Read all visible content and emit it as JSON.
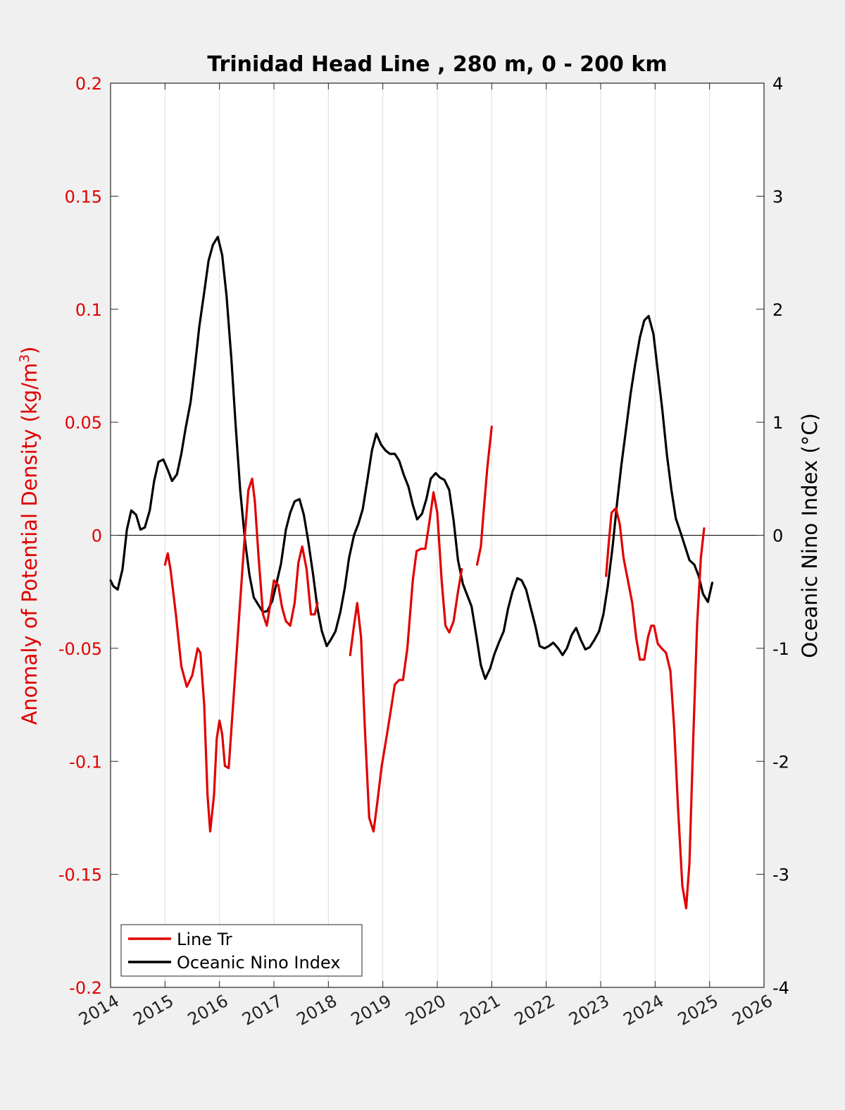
{
  "chart_data": {
    "type": "line",
    "title": "Trinidad Head Line , 280 m, 0 - 200 km",
    "ylabel_left": "Anomaly of Potential Density (kg/m",
    "ylabel_left_sup": "3",
    "ylabel_left_close": ")",
    "ylabel_right": "Oceanic Nino Index (°C)",
    "xlim": [
      2014,
      2026
    ],
    "ylim_left": [
      -0.2,
      0.2
    ],
    "ylim_right": [
      -4,
      4
    ],
    "x_ticks": [
      "2014",
      "2015",
      "2016",
      "2017",
      "2018",
      "2019",
      "2020",
      "2021",
      "2022",
      "2023",
      "2024",
      "2025",
      "2026"
    ],
    "y_ticks_left": [
      "-0.2",
      "-0.15",
      "-0.1",
      "-0.05",
      "0",
      "0.05",
      "0.1",
      "0.15",
      "0.2"
    ],
    "y_ticks_right": [
      "-4",
      "-3",
      "-2",
      "-1",
      "0",
      "1",
      "2",
      "3",
      "4"
    ],
    "grid": "vertical",
    "legend_position": "bottom-left",
    "colors": {
      "line_tr": "#e00000",
      "oni": "#000000",
      "left_axis": "#e00000",
      "plot_bg": "#ffffff",
      "figure_bg": "#f0f0f0"
    },
    "series": [
      {
        "name": "Line Tr",
        "axis": "left",
        "color": "#e00000",
        "segments": [
          [
            [
              2015.0,
              -0.013
            ],
            [
              2015.05,
              -0.008
            ],
            [
              2015.1,
              -0.015
            ],
            [
              2015.2,
              -0.035
            ],
            [
              2015.3,
              -0.058
            ],
            [
              2015.4,
              -0.067
            ],
            [
              2015.5,
              -0.062
            ],
            [
              2015.6,
              -0.05
            ],
            [
              2015.65,
              -0.052
            ],
            [
              2015.72,
              -0.075
            ],
            [
              2015.78,
              -0.115
            ],
            [
              2015.83,
              -0.131
            ],
            [
              2015.9,
              -0.115
            ],
            [
              2015.95,
              -0.09
            ],
            [
              2016.0,
              -0.082
            ],
            [
              2016.05,
              -0.088
            ],
            [
              2016.1,
              -0.102
            ],
            [
              2016.17,
              -0.103
            ],
            [
              2016.25,
              -0.075
            ],
            [
              2016.35,
              -0.04
            ],
            [
              2016.45,
              -0.005
            ],
            [
              2016.53,
              0.02
            ],
            [
              2016.6,
              0.025
            ],
            [
              2016.65,
              0.015
            ],
            [
              2016.72,
              -0.01
            ],
            [
              2016.8,
              -0.035
            ],
            [
              2016.87,
              -0.04
            ],
            [
              2016.95,
              -0.028
            ],
            [
              2017.0,
              -0.02
            ],
            [
              2017.08,
              -0.022
            ],
            [
              2017.15,
              -0.032
            ],
            [
              2017.22,
              -0.038
            ],
            [
              2017.3,
              -0.04
            ],
            [
              2017.38,
              -0.03
            ],
            [
              2017.45,
              -0.012
            ],
            [
              2017.52,
              -0.005
            ],
            [
              2017.6,
              -0.015
            ],
            [
              2017.68,
              -0.035
            ],
            [
              2017.75,
              -0.035
            ],
            [
              2017.8,
              -0.03
            ]
          ],
          [
            [
              2018.4,
              -0.053
            ],
            [
              2018.47,
              -0.04
            ],
            [
              2018.53,
              -0.03
            ],
            [
              2018.6,
              -0.045
            ],
            [
              2018.67,
              -0.085
            ],
            [
              2018.75,
              -0.125
            ],
            [
              2018.83,
              -0.131
            ],
            [
              2018.9,
              -0.118
            ],
            [
              2018.98,
              -0.102
            ],
            [
              2019.05,
              -0.092
            ],
            [
              2019.13,
              -0.08
            ],
            [
              2019.22,
              -0.066
            ],
            [
              2019.3,
              -0.064
            ],
            [
              2019.37,
              -0.064
            ],
            [
              2019.45,
              -0.05
            ],
            [
              2019.55,
              -0.02
            ],
            [
              2019.62,
              -0.007
            ],
            [
              2019.7,
              -0.006
            ],
            [
              2019.78,
              -0.006
            ],
            [
              2019.85,
              0.005
            ],
            [
              2019.93,
              0.019
            ],
            [
              2020.0,
              0.01
            ],
            [
              2020.08,
              -0.02
            ],
            [
              2020.15,
              -0.04
            ],
            [
              2020.22,
              -0.043
            ],
            [
              2020.3,
              -0.038
            ],
            [
              2020.38,
              -0.025
            ],
            [
              2020.45,
              -0.015
            ]
          ],
          [
            [
              2020.73,
              -0.013
            ],
            [
              2020.8,
              -0.005
            ],
            [
              2020.85,
              0.01
            ],
            [
              2020.92,
              0.03
            ],
            [
              2021.0,
              0.048
            ]
          ],
          [
            [
              2023.1,
              -0.018
            ],
            [
              2023.15,
              -0.003
            ],
            [
              2023.2,
              0.01
            ],
            [
              2023.28,
              0.012
            ],
            [
              2023.35,
              0.005
            ],
            [
              2023.42,
              -0.01
            ],
            [
              2023.5,
              -0.02
            ],
            [
              2023.58,
              -0.03
            ],
            [
              2023.65,
              -0.045
            ],
            [
              2023.72,
              -0.055
            ],
            [
              2023.8,
              -0.055
            ],
            [
              2023.87,
              -0.045
            ],
            [
              2023.93,
              -0.04
            ],
            [
              2023.98,
              -0.04
            ],
            [
              2024.05,
              -0.048
            ],
            [
              2024.12,
              -0.05
            ],
            [
              2024.2,
              -0.052
            ],
            [
              2024.28,
              -0.06
            ],
            [
              2024.35,
              -0.085
            ],
            [
              2024.42,
              -0.12
            ],
            [
              2024.5,
              -0.155
            ],
            [
              2024.57,
              -0.165
            ],
            [
              2024.63,
              -0.145
            ],
            [
              2024.7,
              -0.09
            ],
            [
              2024.77,
              -0.04
            ],
            [
              2024.84,
              -0.01
            ],
            [
              2024.9,
              0.003
            ]
          ]
        ]
      },
      {
        "name": "Oceanic Nino Index",
        "axis": "right",
        "color": "#000000",
        "points": [
          [
            2014.0,
            -0.4
          ],
          [
            2014.05,
            -0.45
          ],
          [
            2014.13,
            -0.48
          ],
          [
            2014.22,
            -0.3
          ],
          [
            2014.3,
            0.05
          ],
          [
            2014.38,
            0.22
          ],
          [
            2014.47,
            0.18
          ],
          [
            2014.55,
            0.05
          ],
          [
            2014.63,
            0.07
          ],
          [
            2014.72,
            0.22
          ],
          [
            2014.8,
            0.48
          ],
          [
            2014.88,
            0.65
          ],
          [
            2014.97,
            0.67
          ],
          [
            2015.05,
            0.58
          ],
          [
            2015.13,
            0.48
          ],
          [
            2015.22,
            0.54
          ],
          [
            2015.3,
            0.72
          ],
          [
            2015.38,
            0.95
          ],
          [
            2015.47,
            1.18
          ],
          [
            2015.55,
            1.5
          ],
          [
            2015.63,
            1.85
          ],
          [
            2015.72,
            2.15
          ],
          [
            2015.8,
            2.43
          ],
          [
            2015.88,
            2.57
          ],
          [
            2015.97,
            2.64
          ],
          [
            2016.05,
            2.48
          ],
          [
            2016.13,
            2.12
          ],
          [
            2016.22,
            1.55
          ],
          [
            2016.3,
            0.95
          ],
          [
            2016.38,
            0.4
          ],
          [
            2016.47,
            -0.05
          ],
          [
            2016.55,
            -0.35
          ],
          [
            2016.63,
            -0.55
          ],
          [
            2016.72,
            -0.62
          ],
          [
            2016.8,
            -0.68
          ],
          [
            2016.88,
            -0.67
          ],
          [
            2016.97,
            -0.58
          ],
          [
            2017.05,
            -0.42
          ],
          [
            2017.13,
            -0.25
          ],
          [
            2017.22,
            0.05
          ],
          [
            2017.3,
            0.2
          ],
          [
            2017.38,
            0.3
          ],
          [
            2017.47,
            0.32
          ],
          [
            2017.55,
            0.18
          ],
          [
            2017.63,
            -0.05
          ],
          [
            2017.72,
            -0.35
          ],
          [
            2017.8,
            -0.65
          ],
          [
            2017.88,
            -0.85
          ],
          [
            2017.97,
            -0.98
          ],
          [
            2018.05,
            -0.92
          ],
          [
            2018.13,
            -0.85
          ],
          [
            2018.22,
            -0.68
          ],
          [
            2018.3,
            -0.47
          ],
          [
            2018.38,
            -0.2
          ],
          [
            2018.47,
            0.0
          ],
          [
            2018.55,
            0.1
          ],
          [
            2018.63,
            0.23
          ],
          [
            2018.72,
            0.5
          ],
          [
            2018.8,
            0.75
          ],
          [
            2018.88,
            0.9
          ],
          [
            2018.97,
            0.8
          ],
          [
            2019.05,
            0.75
          ],
          [
            2019.13,
            0.72
          ],
          [
            2019.22,
            0.72
          ],
          [
            2019.3,
            0.66
          ],
          [
            2019.38,
            0.54
          ],
          [
            2019.47,
            0.43
          ],
          [
            2019.55,
            0.27
          ],
          [
            2019.63,
            0.14
          ],
          [
            2019.72,
            0.19
          ],
          [
            2019.8,
            0.32
          ],
          [
            2019.88,
            0.5
          ],
          [
            2019.97,
            0.55
          ],
          [
            2020.05,
            0.51
          ],
          [
            2020.13,
            0.49
          ],
          [
            2020.22,
            0.4
          ],
          [
            2020.3,
            0.13
          ],
          [
            2020.38,
            -0.22
          ],
          [
            2020.47,
            -0.43
          ],
          [
            2020.55,
            -0.53
          ],
          [
            2020.63,
            -0.63
          ],
          [
            2020.72,
            -0.9
          ],
          [
            2020.8,
            -1.15
          ],
          [
            2020.88,
            -1.27
          ],
          [
            2020.97,
            -1.18
          ],
          [
            2021.05,
            -1.05
          ],
          [
            2021.13,
            -0.95
          ],
          [
            2021.22,
            -0.85
          ],
          [
            2021.3,
            -0.65
          ],
          [
            2021.38,
            -0.5
          ],
          [
            2021.47,
            -0.38
          ],
          [
            2021.55,
            -0.4
          ],
          [
            2021.63,
            -0.48
          ],
          [
            2021.72,
            -0.65
          ],
          [
            2021.8,
            -0.8
          ],
          [
            2021.88,
            -0.98
          ],
          [
            2021.97,
            -1.0
          ],
          [
            2022.05,
            -0.98
          ],
          [
            2022.13,
            -0.95
          ],
          [
            2022.22,
            -1.0
          ],
          [
            2022.3,
            -1.06
          ],
          [
            2022.38,
            -1.0
          ],
          [
            2022.47,
            -0.88
          ],
          [
            2022.55,
            -0.82
          ],
          [
            2022.63,
            -0.92
          ],
          [
            2022.72,
            -1.01
          ],
          [
            2022.8,
            -0.99
          ],
          [
            2022.88,
            -0.93
          ],
          [
            2022.97,
            -0.85
          ],
          [
            2023.05,
            -0.7
          ],
          [
            2023.13,
            -0.45
          ],
          [
            2023.22,
            -0.1
          ],
          [
            2023.3,
            0.28
          ],
          [
            2023.38,
            0.62
          ],
          [
            2023.47,
            0.95
          ],
          [
            2023.55,
            1.25
          ],
          [
            2023.63,
            1.5
          ],
          [
            2023.72,
            1.75
          ],
          [
            2023.8,
            1.9
          ],
          [
            2023.88,
            1.94
          ],
          [
            2023.97,
            1.78
          ],
          [
            2024.05,
            1.45
          ],
          [
            2024.13,
            1.12
          ],
          [
            2024.22,
            0.7
          ],
          [
            2024.3,
            0.4
          ],
          [
            2024.38,
            0.15
          ],
          [
            2024.47,
            0.02
          ],
          [
            2024.55,
            -0.1
          ],
          [
            2024.63,
            -0.22
          ],
          [
            2024.72,
            -0.26
          ],
          [
            2024.8,
            -0.36
          ],
          [
            2024.88,
            -0.52
          ],
          [
            2024.97,
            -0.59
          ],
          [
            2025.05,
            -0.42
          ]
        ]
      }
    ]
  }
}
